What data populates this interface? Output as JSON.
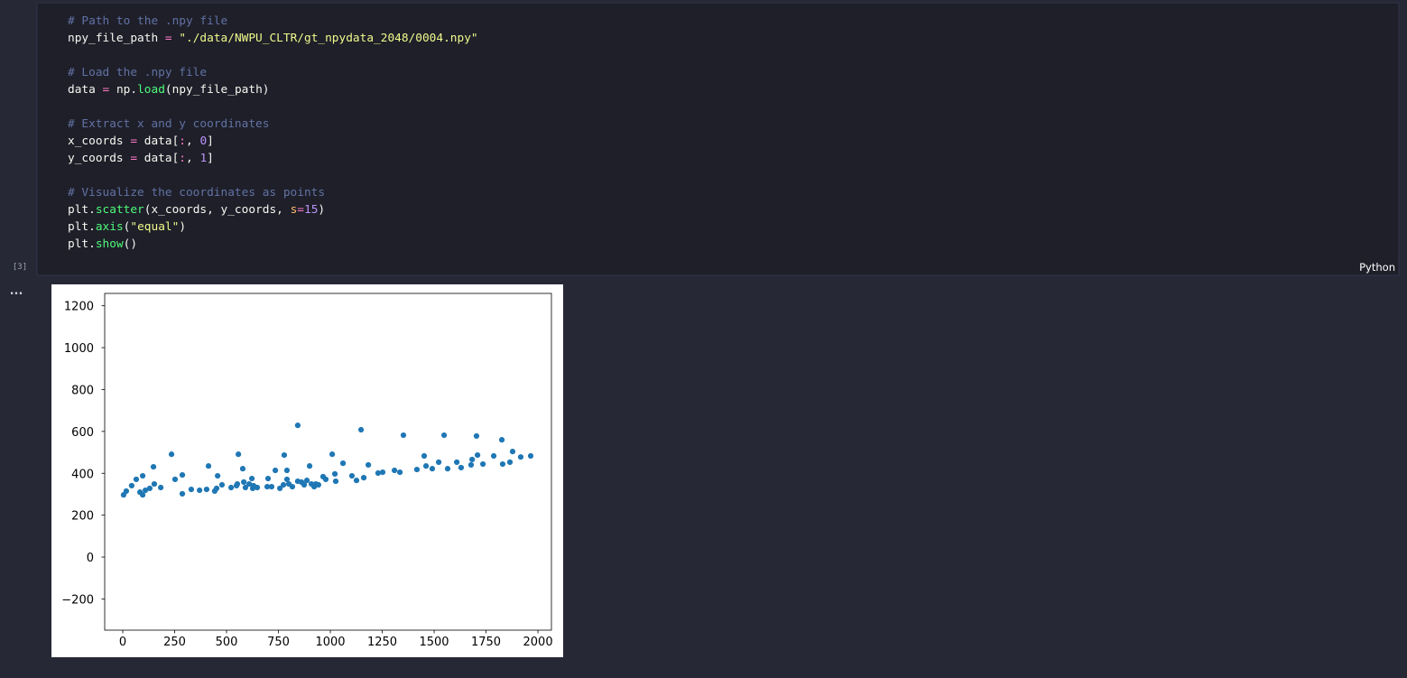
{
  "cell": {
    "execution_count": "[3]",
    "language": "Python",
    "code": [
      [
        {
          "text": "# Path to the .npy file",
          "color": "#6272a4"
        }
      ],
      [
        {
          "text": "npy_file_path ",
          "color": "#f8f8f2"
        },
        {
          "text": "=",
          "color": "#ff79c6"
        },
        {
          "text": " ",
          "color": "#f8f8f2"
        },
        {
          "text": "\"./data/NWPU_CLTR/gt_npydata_2048/0004.npy\"",
          "color": "#f1fa8c"
        }
      ],
      [],
      [
        {
          "text": "# Load the .npy file",
          "color": "#6272a4"
        }
      ],
      [
        {
          "text": "data ",
          "color": "#f8f8f2"
        },
        {
          "text": "=",
          "color": "#ff79c6"
        },
        {
          "text": " np.",
          "color": "#f8f8f2"
        },
        {
          "text": "load",
          "color": "#50fa7b"
        },
        {
          "text": "(npy_file_path)",
          "color": "#f8f8f2"
        }
      ],
      [],
      [
        {
          "text": "# Extract x and y coordinates",
          "color": "#6272a4"
        }
      ],
      [
        {
          "text": "x_coords ",
          "color": "#f8f8f2"
        },
        {
          "text": "=",
          "color": "#ff79c6"
        },
        {
          "text": " data[",
          "color": "#f8f8f2"
        },
        {
          "text": ":",
          "color": "#ff79c6"
        },
        {
          "text": ", ",
          "color": "#f8f8f2"
        },
        {
          "text": "0",
          "color": "#bd93f9"
        },
        {
          "text": "]",
          "color": "#f8f8f2"
        }
      ],
      [
        {
          "text": "y_coords ",
          "color": "#f8f8f2"
        },
        {
          "text": "=",
          "color": "#ff79c6"
        },
        {
          "text": " data[",
          "color": "#f8f8f2"
        },
        {
          "text": ":",
          "color": "#ff79c6"
        },
        {
          "text": ", ",
          "color": "#f8f8f2"
        },
        {
          "text": "1",
          "color": "#bd93f9"
        },
        {
          "text": "]",
          "color": "#f8f8f2"
        }
      ],
      [],
      [
        {
          "text": "# Visualize the coordinates as points",
          "color": "#6272a4"
        }
      ],
      [
        {
          "text": "plt.",
          "color": "#f8f8f2"
        },
        {
          "text": "scatter",
          "color": "#50fa7b"
        },
        {
          "text": "(x_coords, y_coords, ",
          "color": "#f8f8f2"
        },
        {
          "text": "s",
          "color": "#ffb86c"
        },
        {
          "text": "=",
          "color": "#ff79c6"
        },
        {
          "text": "15",
          "color": "#bd93f9"
        },
        {
          "text": ")",
          "color": "#f8f8f2"
        }
      ],
      [
        {
          "text": "plt.",
          "color": "#f8f8f2"
        },
        {
          "text": "axis",
          "color": "#50fa7b"
        },
        {
          "text": "(",
          "color": "#f8f8f2"
        },
        {
          "text": "\"equal\"",
          "color": "#f1fa8c"
        },
        {
          "text": ")",
          "color": "#f8f8f2"
        }
      ],
      [
        {
          "text": "plt.",
          "color": "#f8f8f2"
        },
        {
          "text": "show",
          "color": "#50fa7b"
        },
        {
          "text": "()",
          "color": "#f8f8f2"
        }
      ]
    ]
  },
  "output_menu": "...",
  "chart_data": {
    "type": "scatter",
    "color": "#1f77b4",
    "xlim": [
      -87,
      2065
    ],
    "ylim": [
      -349,
      1259
    ],
    "xticks": [
      0,
      250,
      500,
      750,
      1000,
      1250,
      1500,
      1750,
      2000
    ],
    "yticks": [
      {
        "value": -200,
        "label": "−200"
      },
      0,
      200,
      400,
      600,
      800,
      1000,
      1200
    ],
    "x": [
      4,
      17,
      43,
      65,
      83,
      96,
      96,
      109,
      130,
      148,
      152,
      183,
      235,
      252,
      287,
      287,
      330,
      370,
      404,
      413,
      443,
      457,
      478,
      452,
      522,
      548,
      557,
      578,
      552,
      591,
      583,
      609,
      622,
      630,
      626,
      648,
      696,
      700,
      717,
      735,
      757,
      774,
      778,
      791,
      791,
      800,
      817,
      843,
      843,
      861,
      874,
      887,
      900,
      909,
      922,
      930,
      943,
      965,
      978,
      1009,
      1022,
      1026,
      1061,
      1104,
      1126,
      1148,
      1161,
      1183,
      1230,
      1252,
      1309,
      1335,
      1352,
      1417,
      1452,
      1461,
      1491,
      1522,
      1548,
      1565,
      1609,
      1630,
      1678,
      1683,
      1704,
      1709,
      1735,
      1787,
      1826,
      1830,
      1865,
      1878,
      1917,
      1965
    ],
    "y": [
      297,
      315,
      341,
      371,
      310,
      388,
      297,
      319,
      328,
      431,
      349,
      332,
      491,
      371,
      302,
      392,
      323,
      319,
      323,
      435,
      315,
      388,
      345,
      328,
      332,
      341,
      491,
      422,
      349,
      332,
      358,
      349,
      375,
      341,
      328,
      332,
      336,
      375,
      336,
      414,
      328,
      345,
      487,
      414,
      371,
      349,
      336,
      629,
      362,
      358,
      345,
      366,
      435,
      349,
      336,
      349,
      345,
      384,
      371,
      491,
      397,
      362,
      448,
      388,
      366,
      608,
      379,
      440,
      401,
      405,
      414,
      405,
      582,
      418,
      483,
      435,
      422,
      453,
      582,
      422,
      453,
      427,
      440,
      466,
      578,
      487,
      444,
      483,
      560,
      444,
      453,
      504,
      478,
      483
    ]
  }
}
